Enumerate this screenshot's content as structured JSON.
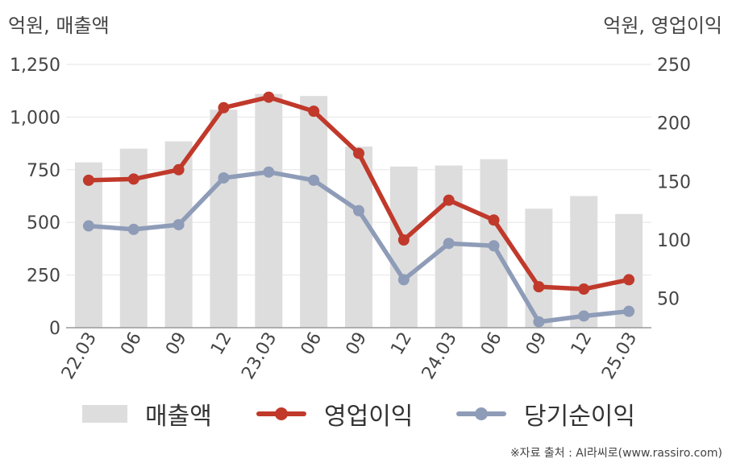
{
  "units": {
    "left": "억원, 매출액",
    "right": "억원, 영업이익"
  },
  "legend": {
    "sales": "매출액",
    "op": "영업이익",
    "net": "당기순이익"
  },
  "source": "※자료 출처 : AI라씨로(www.rassiro.com)",
  "colors": {
    "bar": "#dddddd",
    "op": "#c0392b",
    "net": "#8e9cb8",
    "grid": "#e6e6e6",
    "axis": "#999999",
    "tick": "#444444"
  },
  "chart_data": {
    "type": "bar+line",
    "categories": [
      "22.03",
      "06",
      "09",
      "12",
      "23.03",
      "06",
      "09",
      "12",
      "24.03",
      "06",
      "09",
      "12",
      "25.03"
    ],
    "y_left": {
      "ticks": [
        "0",
        "250",
        "500",
        "750",
        "1,000",
        "1,250"
      ],
      "lim": [
        0,
        1250
      ]
    },
    "y_right": {
      "ticks": [
        "50",
        "100",
        "150",
        "200",
        "250"
      ],
      "lim": [
        25,
        250
      ]
    },
    "series": [
      {
        "name": "매출액",
        "type": "bar",
        "axis": "left",
        "values": [
          785,
          850,
          885,
          1035,
          1110,
          1100,
          860,
          765,
          770,
          800,
          565,
          625,
          540
        ]
      },
      {
        "name": "영업이익",
        "type": "line",
        "axis": "right",
        "values": [
          151,
          152,
          160,
          213,
          222,
          210,
          174,
          100,
          134,
          117,
          60,
          58,
          66
        ]
      },
      {
        "name": "당기순이익",
        "type": "line",
        "axis": "right",
        "values": [
          112,
          109,
          113,
          153,
          158,
          151,
          125,
          66,
          97,
          95,
          30,
          35,
          39
        ]
      }
    ]
  }
}
